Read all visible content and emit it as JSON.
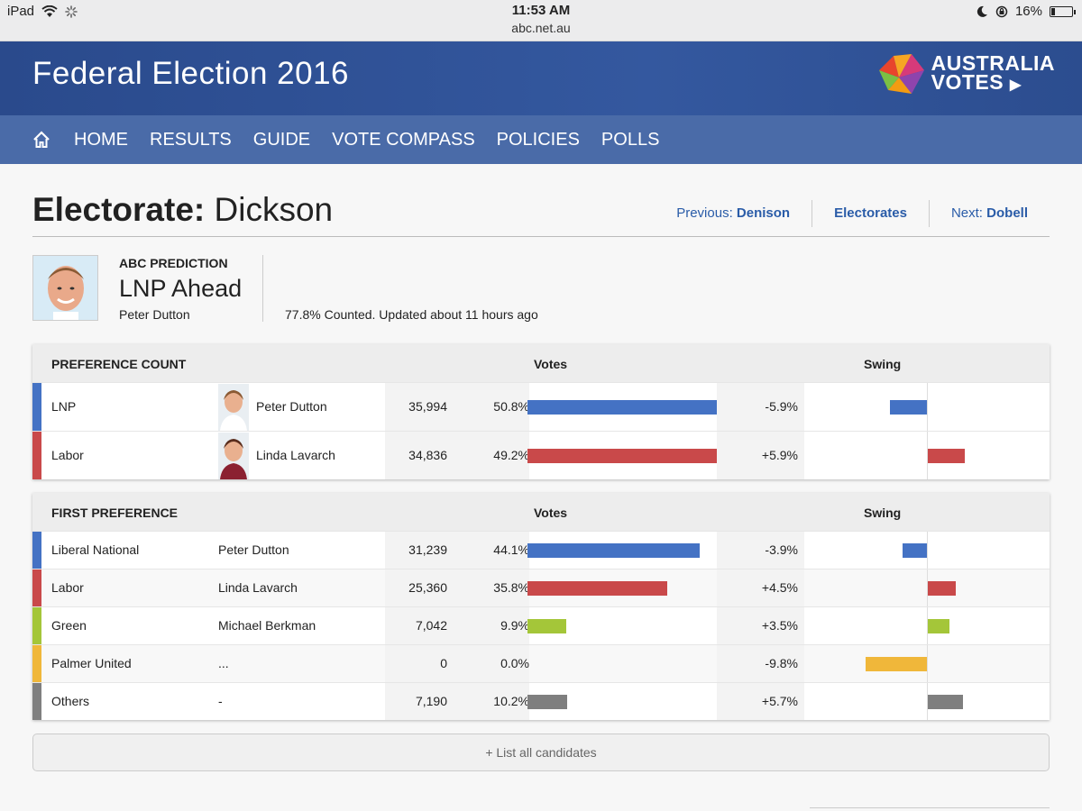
{
  "status_bar": {
    "device": "iPad",
    "time": "11:53 AM",
    "url": "abc.net.au",
    "battery": "16%",
    "battery_level": 0.16
  },
  "banner": {
    "title": "Federal Election 2016",
    "logo_line1": "AUSTRALIA",
    "logo_line2": "VOTES"
  },
  "nav": {
    "items": [
      "HOME",
      "RESULTS",
      "GUIDE",
      "VOTE COMPASS",
      "POLICIES",
      "POLLS"
    ]
  },
  "heading": {
    "label": "Electorate:",
    "name": "Dickson"
  },
  "pager": {
    "previous_label": "Previous:",
    "previous_value": "Denison",
    "middle": "Electorates",
    "next_label": "Next:",
    "next_value": "Dobell"
  },
  "prediction": {
    "label": "ABC PREDICTION",
    "value": "LNP Ahead",
    "candidate": "Peter Dutton",
    "status": "77.8% Counted. Updated about 11 hours ago"
  },
  "colors": {
    "lnp": "#4472c4",
    "labor": "#c9494a",
    "green": "#a4c639",
    "palmer": "#f0b73a",
    "others": "#7f7f7f"
  },
  "preference_count": {
    "title": "PREFERENCE COUNT",
    "votes_header": "Votes",
    "swing_header": "Swing",
    "rows": [
      {
        "party": "LNP",
        "candidate": "Peter Dutton",
        "votes": "35,994",
        "pct": "50.8%",
        "pct_value": 50.8,
        "swing": "-5.9%",
        "swing_value": -5.9,
        "color": "#4472c4"
      },
      {
        "party": "Labor",
        "candidate": "Linda Lavarch",
        "votes": "34,836",
        "pct": "49.2%",
        "pct_value": 49.2,
        "swing": "+5.9%",
        "swing_value": 5.9,
        "color": "#c9494a"
      }
    ]
  },
  "first_preference": {
    "title": "FIRST PREFERENCE",
    "votes_header": "Votes",
    "swing_header": "Swing",
    "rows": [
      {
        "party": "Liberal National",
        "candidate": "Peter Dutton",
        "votes": "31,239",
        "pct": "44.1%",
        "pct_value": 44.1,
        "swing": "-3.9%",
        "swing_value": -3.9,
        "color": "#4472c4"
      },
      {
        "party": "Labor",
        "candidate": "Linda Lavarch",
        "votes": "25,360",
        "pct": "35.8%",
        "pct_value": 35.8,
        "swing": "+4.5%",
        "swing_value": 4.5,
        "color": "#c9494a"
      },
      {
        "party": "Green",
        "candidate": "Michael Berkman",
        "votes": "7,042",
        "pct": "9.9%",
        "pct_value": 9.9,
        "swing": "+3.5%",
        "swing_value": 3.5,
        "color": "#a4c639"
      },
      {
        "party": "Palmer United",
        "candidate": "...",
        "votes": "0",
        "pct": "0.0%",
        "pct_value": 0,
        "swing": "-9.8%",
        "swing_value": -9.8,
        "color": "#f0b73a"
      },
      {
        "party": "Others",
        "candidate": "-",
        "votes": "7,190",
        "pct": "10.2%",
        "pct_value": 10.2,
        "swing": "+5.7%",
        "swing_value": 5.7,
        "color": "#7f7f7f"
      }
    ]
  },
  "list_button": "+ List all candidates"
}
